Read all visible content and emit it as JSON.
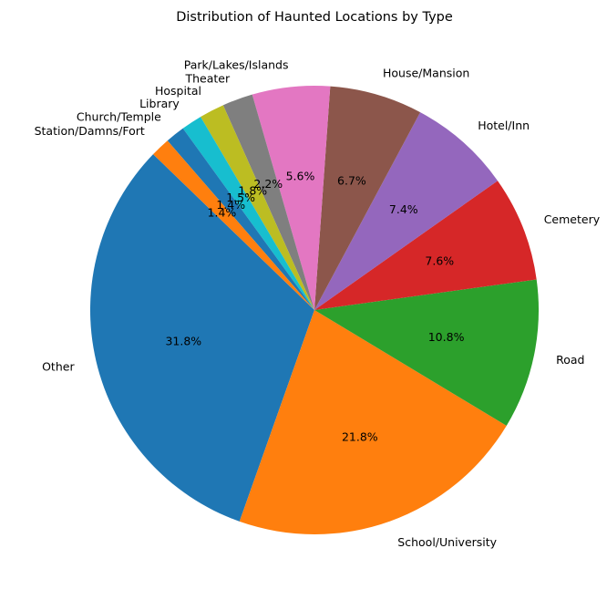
{
  "chart_data": {
    "type": "pie",
    "title": "Distribution of Haunted Locations by Type",
    "start_angle_deg": 136,
    "direction": "counterclockwise",
    "slices": [
      {
        "label": "Other",
        "value": 31.8,
        "pct_label": "31.8%",
        "color": "#1f77b4"
      },
      {
        "label": "School/University",
        "value": 21.8,
        "pct_label": "21.8%",
        "color": "#ff7f0e"
      },
      {
        "label": "Road",
        "value": 10.8,
        "pct_label": "10.8%",
        "color": "#2ca02c"
      },
      {
        "label": "Cemetery",
        "value": 7.6,
        "pct_label": "7.6%",
        "color": "#d62728"
      },
      {
        "label": "Hotel/Inn",
        "value": 7.4,
        "pct_label": "7.4%",
        "color": "#9467bd"
      },
      {
        "label": "House/Mansion",
        "value": 6.7,
        "pct_label": "6.7%",
        "color": "#8c564b"
      },
      {
        "label": "Park/Lakes/Islands",
        "value": 5.6,
        "pct_label": "5.6%",
        "color": "#e377c2"
      },
      {
        "label": "Theater",
        "value": 2.2,
        "pct_label": "2.2%",
        "color": "#7f7f7f"
      },
      {
        "label": "Hospital",
        "value": 1.8,
        "pct_label": "1.8%",
        "color": "#bcbd22"
      },
      {
        "label": "Library",
        "value": 1.5,
        "pct_label": "1.5%",
        "color": "#17becf"
      },
      {
        "label": "Church/Temple",
        "value": 1.4,
        "pct_label": "1.4%",
        "color": "#1f77b4"
      },
      {
        "label": "Station/Damns/Fort",
        "value": 1.4,
        "pct_label": "1.4%",
        "color": "#ff7f0e"
      }
    ]
  }
}
